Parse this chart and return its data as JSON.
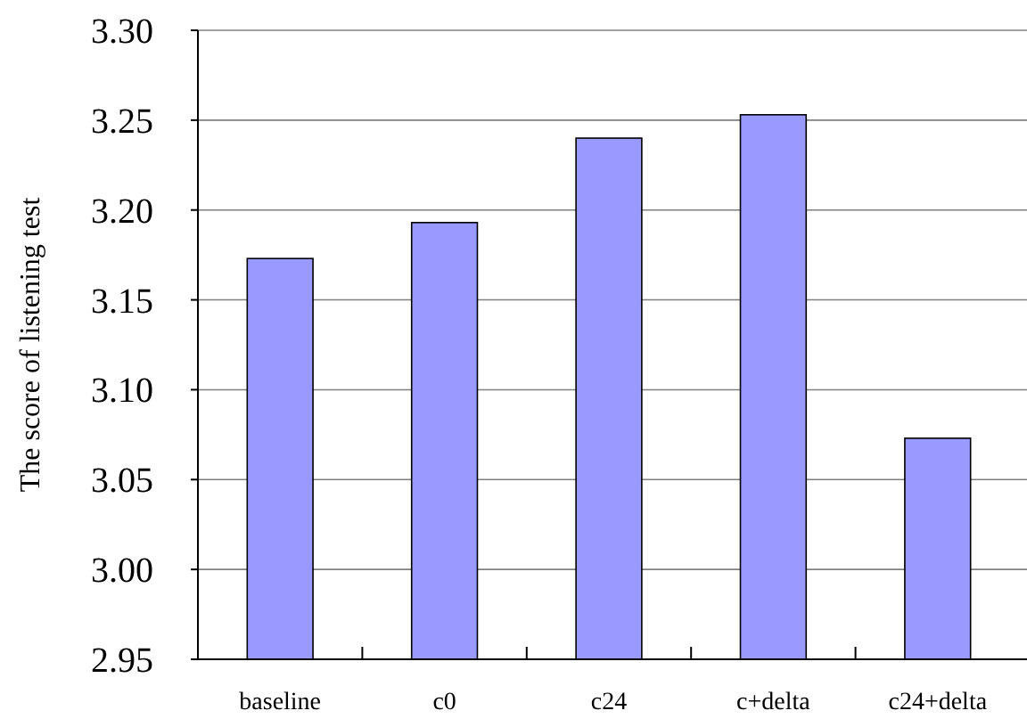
{
  "chart_data": {
    "type": "bar",
    "ylabel": "The score of listening test",
    "categories": [
      "baseline",
      "c0",
      "c24",
      "c+delta",
      "c24+delta"
    ],
    "values": [
      3.173,
      3.193,
      3.24,
      3.253,
      3.073
    ],
    "color": "#9999ff",
    "ylim": [
      2.95,
      3.3
    ],
    "yticks": [
      {
        "value": 2.95,
        "label": "2.95"
      },
      {
        "value": 3.0,
        "label": "3.00"
      },
      {
        "value": 3.05,
        "label": "3.05"
      },
      {
        "value": 3.1,
        "label": "3.10"
      },
      {
        "value": 3.15,
        "label": "3.15"
      },
      {
        "value": 3.2,
        "label": "3.20"
      },
      {
        "value": 3.25,
        "label": "3.25"
      },
      {
        "value": 3.3,
        "label": "3.30"
      }
    ],
    "grid": "y"
  }
}
